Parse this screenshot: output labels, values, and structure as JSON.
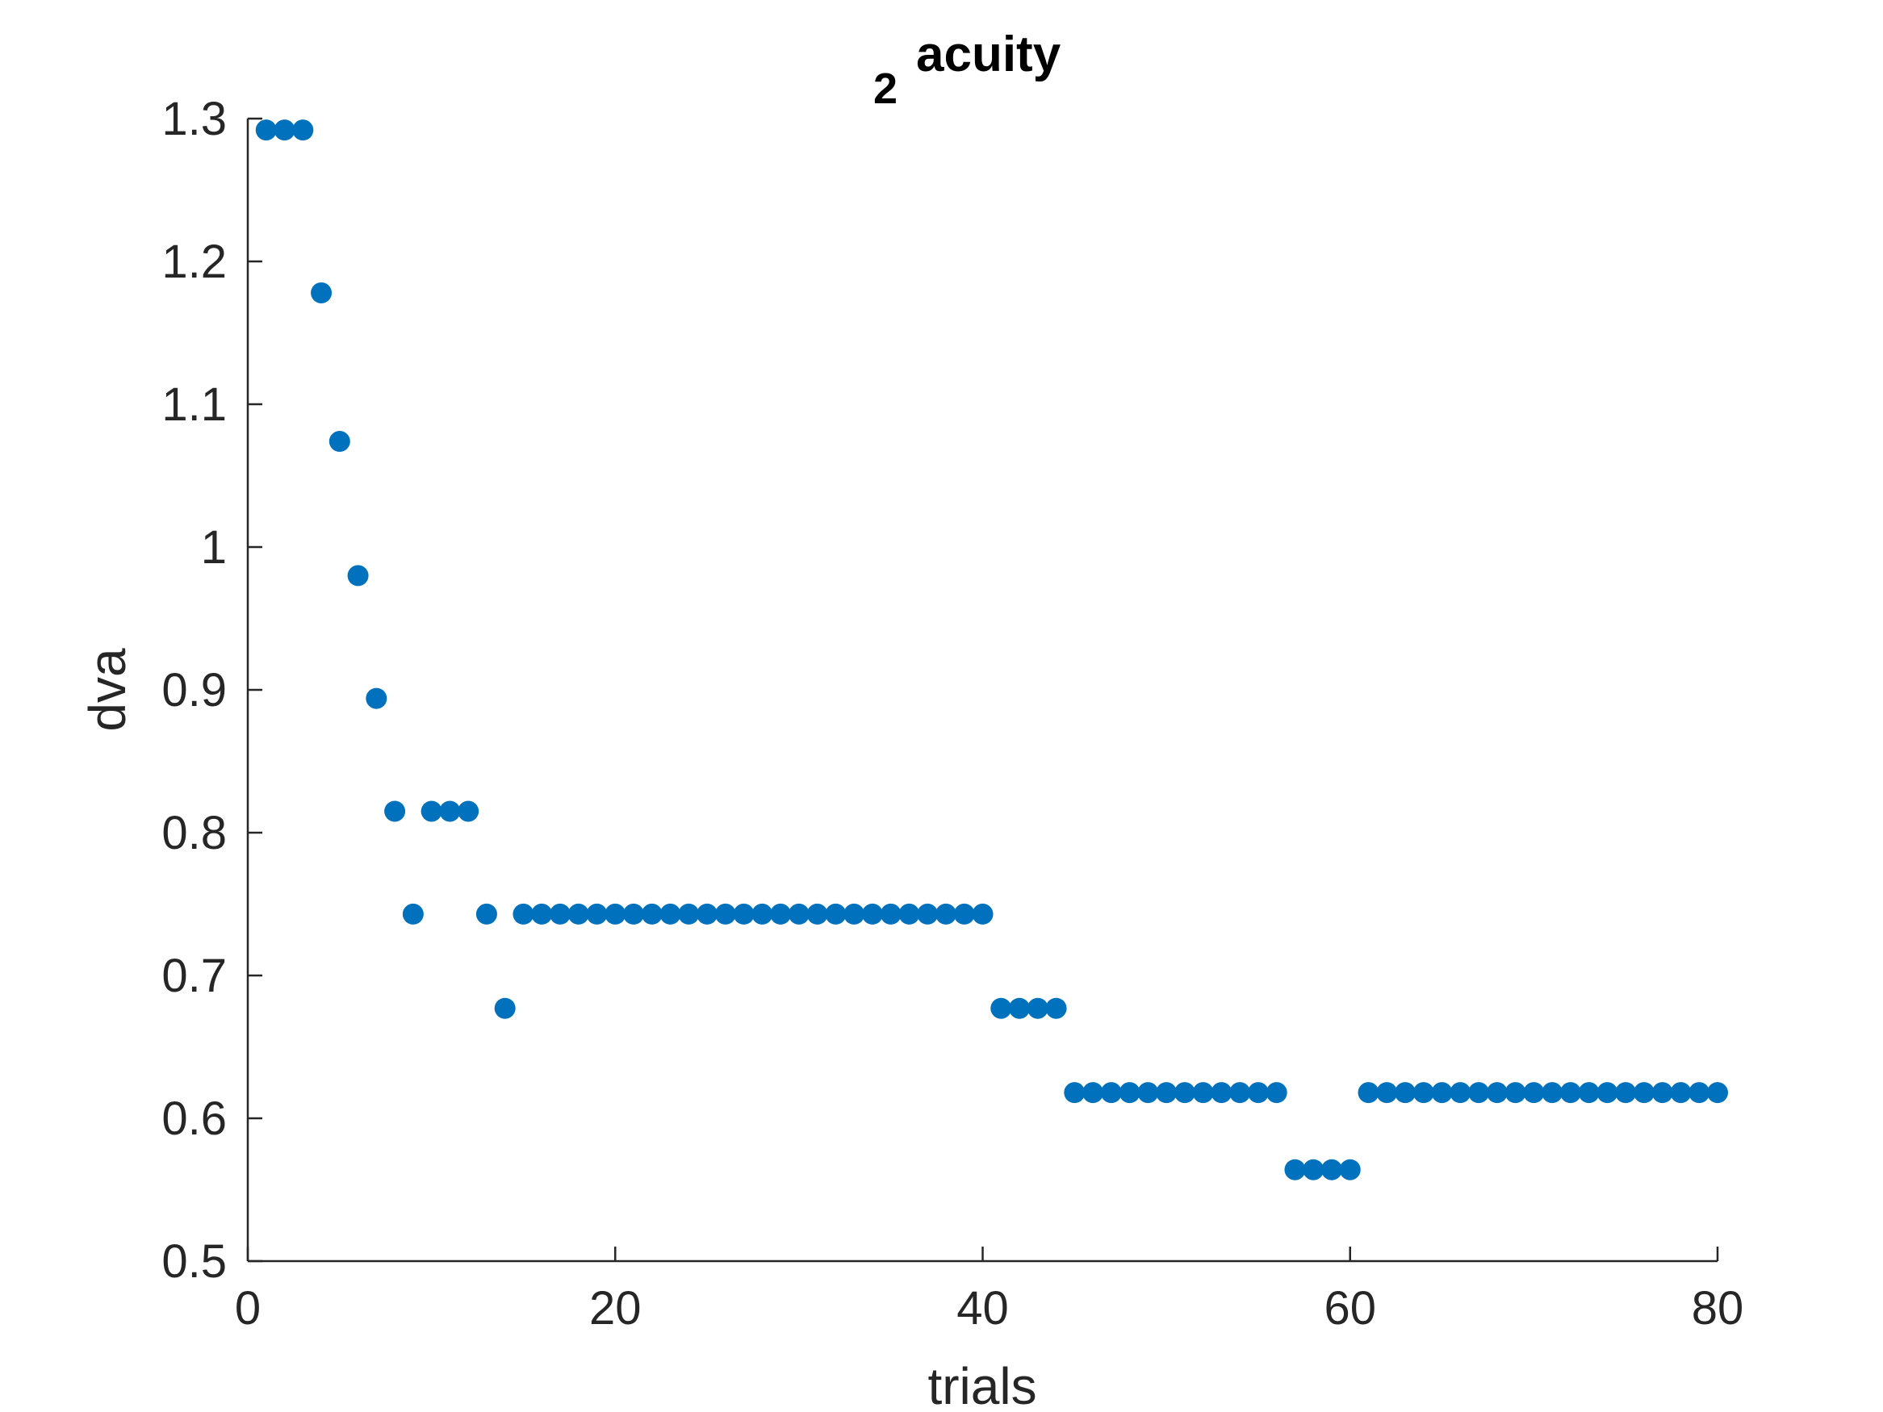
{
  "chart_data": {
    "type": "scatter",
    "title_main": "acuity",
    "title_subscript": "2",
    "xlabel": "trials",
    "ylabel": "dva",
    "xlim": [
      0,
      80
    ],
    "ylim": [
      0.5,
      1.3
    ],
    "xticks": [
      0,
      20,
      40,
      60,
      80
    ],
    "xtick_labels": [
      "0",
      "20",
      "40",
      "60",
      "80"
    ],
    "yticks": [
      0.5,
      0.6,
      0.7,
      0.8,
      0.9,
      1.0,
      1.1,
      1.2,
      1.3
    ],
    "ytick_labels": [
      "0.5",
      "0.6",
      "0.7",
      "0.8",
      "0.9",
      "1",
      "1.1",
      "1.2",
      "1.3"
    ],
    "grid": false,
    "marker_color": "#0072BD",
    "axis_color": "#262626",
    "x": [
      1,
      2,
      3,
      4,
      5,
      6,
      7,
      8,
      9,
      10,
      11,
      12,
      13,
      14,
      15,
      16,
      17,
      18,
      19,
      20,
      21,
      22,
      23,
      24,
      25,
      26,
      27,
      28,
      29,
      30,
      31,
      32,
      33,
      34,
      35,
      36,
      37,
      38,
      39,
      40,
      41,
      42,
      43,
      44,
      45,
      46,
      47,
      48,
      49,
      50,
      51,
      52,
      53,
      54,
      55,
      56,
      57,
      58,
      59,
      60,
      61,
      62,
      63,
      64,
      65,
      66,
      67,
      68,
      69,
      70,
      71,
      72,
      73,
      74,
      75,
      76,
      77,
      78,
      79,
      80
    ],
    "y": [
      1.292,
      1.292,
      1.292,
      1.178,
      1.074,
      0.98,
      0.894,
      0.815,
      0.743,
      0.815,
      0.815,
      0.815,
      0.743,
      0.677,
      0.743,
      0.743,
      0.743,
      0.743,
      0.743,
      0.743,
      0.743,
      0.743,
      0.743,
      0.743,
      0.743,
      0.743,
      0.743,
      0.743,
      0.743,
      0.743,
      0.743,
      0.743,
      0.743,
      0.743,
      0.743,
      0.743,
      0.743,
      0.743,
      0.743,
      0.743,
      0.677,
      0.677,
      0.677,
      0.677,
      0.618,
      0.618,
      0.618,
      0.618,
      0.618,
      0.618,
      0.618,
      0.618,
      0.618,
      0.618,
      0.618,
      0.618,
      0.564,
      0.564,
      0.564,
      0.564,
      0.618,
      0.618,
      0.618,
      0.618,
      0.618,
      0.618,
      0.618,
      0.618,
      0.618,
      0.618,
      0.618,
      0.618,
      0.618,
      0.618,
      0.618,
      0.618,
      0.618,
      0.618,
      0.618,
      0.618
    ]
  }
}
